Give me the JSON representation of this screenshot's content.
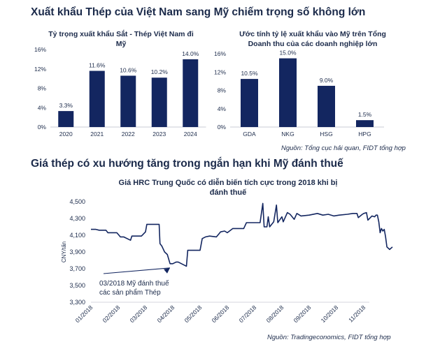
{
  "headings": {
    "top": "Xuất khẩu Thép của Việt Nam sang Mỹ chiếm trọng số không lớn",
    "middle": "Giá thép có xu hướng tăng trong ngắn hạn khi Mỹ đánh thuế"
  },
  "sources": {
    "top": "Nguồn: Tổng cục hải quan, FIDT tổng hợp",
    "bottom": "Nguồn: Tradingeconomics, FIDT tổng hợp"
  },
  "colors": {
    "bar": "#132660",
    "line": "#132660",
    "text": "#1b2a4a"
  },
  "chart_data": [
    {
      "type": "bar",
      "title_lines": [
        "Tỷ trọng xuất khẩu Sắt - Thép Việt Nam đi",
        "Mỹ"
      ],
      "categories": [
        "2020",
        "2021",
        "2022",
        "2023",
        "2024"
      ],
      "values": [
        3.3,
        11.6,
        10.6,
        10.2,
        14.0
      ],
      "value_labels": [
        "3.3%",
        "11.6%",
        "10.6%",
        "10.2%",
        "14.0%"
      ],
      "ylim": [
        0,
        16
      ],
      "y_ticks": [
        0,
        4,
        8,
        12,
        16
      ],
      "y_tick_labels": [
        "0%",
        "4%",
        "8%",
        "12%",
        "16%"
      ]
    },
    {
      "type": "bar",
      "title_lines": [
        "Ước tính tỷ lệ xuất khẩu vào Mỹ trên Tổng",
        "Doanh thu của các doanh nghiệp lớn"
      ],
      "categories": [
        "GDA",
        "NKG",
        "HSG",
        "HPG"
      ],
      "values": [
        10.5,
        15.0,
        9.0,
        1.5
      ],
      "value_labels": [
        "10.5%",
        "15.0%",
        "9.0%",
        "1.5%"
      ],
      "ylim": [
        0,
        16
      ],
      "y_ticks": [
        0,
        4,
        8,
        12,
        16
      ],
      "y_tick_labels": [
        "0%",
        "4%",
        "8%",
        "12%",
        "16%"
      ]
    },
    {
      "type": "line",
      "title_lines": [
        "Giá HRC Trung Quốc có diễn biến tích cực trong 2018 khi bị",
        "đánh thuế"
      ],
      "ylabel": "CNY/tấn",
      "ylim": [
        3300,
        4500
      ],
      "y_ticks": [
        3300,
        3500,
        3700,
        3900,
        4100,
        4300,
        4500
      ],
      "y_tick_labels": [
        "3,300",
        "3,500",
        "3,700",
        "3,900",
        "4,100",
        "4,300",
        "4,500"
      ],
      "x_tick_labels": [
        "01/2018",
        "02/2018",
        "03/2018",
        "04/2018",
        "05/2018",
        "06/2018",
        "07/2018",
        "08/2018",
        "09/2018",
        "10/2018",
        "11/2018"
      ],
      "annotation": [
        "03/2018 Mỹ đánh thuế",
        "các sản phẩm Thép"
      ],
      "series": [
        {
          "name": "HRC",
          "x": [
            0,
            0.18,
            0.3,
            0.55,
            0.62,
            0.95,
            1.08,
            1.2,
            1.45,
            1.5,
            1.85,
            2.0,
            2.05,
            2.5,
            2.53,
            2.6,
            2.7,
            2.8,
            2.9,
            3.0,
            3.12,
            3.2,
            3.5,
            3.55,
            3.9,
            4.0,
            4.08,
            4.2,
            4.35,
            4.6,
            4.75,
            4.9,
            5.0,
            5.2,
            5.6,
            5.7,
            5.8,
            6.2,
            6.3,
            6.35,
            6.45,
            6.5,
            6.55,
            6.7,
            6.8,
            6.85,
            7.0,
            7.05,
            7.2,
            7.3,
            7.45,
            7.55,
            7.7,
            8.0,
            8.3,
            8.5,
            8.7,
            8.9,
            9.1,
            9.4,
            9.6,
            9.75,
            9.8,
            9.95,
            10.0,
            10.1,
            10.15,
            10.3,
            10.4,
            10.45,
            10.5,
            10.55,
            10.6,
            10.65,
            10.7,
            10.75,
            10.8,
            10.85,
            10.95,
            11.05
          ],
          "y": [
            4170,
            4170,
            4160,
            4160,
            4130,
            4130,
            4080,
            4080,
            4040,
            4090,
            4090,
            4140,
            4230,
            4230,
            4000,
            3970,
            3900,
            3870,
            3760,
            3760,
            3780,
            3780,
            3730,
            3920,
            3920,
            3920,
            4060,
            4080,
            4090,
            4080,
            4140,
            4150,
            4130,
            4180,
            4180,
            4250,
            4250,
            4250,
            4480,
            4200,
            4200,
            4320,
            4200,
            4260,
            4460,
            4250,
            4320,
            4260,
            4370,
            4350,
            4290,
            4360,
            4330,
            4340,
            4360,
            4340,
            4350,
            4330,
            4340,
            4350,
            4360,
            4360,
            4310,
            4350,
            4360,
            4370,
            4280,
            4330,
            4320,
            4340,
            4340,
            4260,
            4130,
            4180,
            4150,
            4170,
            4080,
            3960,
            3930,
            3960
          ]
        }
      ]
    }
  ]
}
